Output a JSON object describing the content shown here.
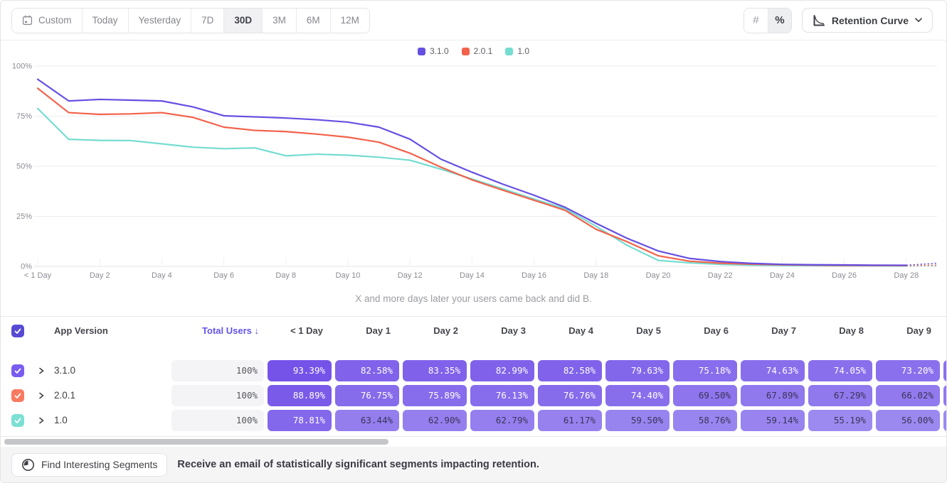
{
  "toolbar": {
    "date_ranges": [
      {
        "label": "Custom",
        "icon": "calendar-icon",
        "active": false
      },
      {
        "label": "Today",
        "active": false
      },
      {
        "label": "Yesterday",
        "active": false
      },
      {
        "label": "7D",
        "active": false
      },
      {
        "label": "30D",
        "active": true
      },
      {
        "label": "3M",
        "active": false
      },
      {
        "label": "6M",
        "active": false
      },
      {
        "label": "12M",
        "active": false
      }
    ],
    "value_format": {
      "options": [
        "#",
        "%"
      ],
      "selected": "%"
    },
    "chart_type_dropdown": {
      "label": "Retention Curve",
      "icon": "retention-curve-icon"
    }
  },
  "chart_data": {
    "type": "line",
    "subtitle": "X and more days later your users came back and did B.",
    "ylim": [
      0,
      100
    ],
    "y_tick_labels": [
      "0%",
      "25%",
      "50%",
      "75%",
      "100%"
    ],
    "x_tick_labels": [
      "< 1 Day",
      "Day 2",
      "Day 4",
      "Day 6",
      "Day 8",
      "Day 10",
      "Day 12",
      "Day 14",
      "Day 16",
      "Day 18",
      "Day 20",
      "Day 22",
      "Day 24",
      "Day 26",
      "Day 28"
    ],
    "x_unit": "day",
    "x_range": [
      0,
      28
    ],
    "grid": "horizontal",
    "legend_position": "top-center",
    "dashed_note": "dotted projection segment after Day 28",
    "series": [
      {
        "name": "3.1.0",
        "color": "#6550e2",
        "dashed_end": 1.6,
        "values": [
          93.39,
          82.58,
          83.35,
          82.99,
          82.58,
          79.63,
          75.18,
          74.63,
          74.05,
          73.2,
          72.0,
          69.5,
          63.5,
          53.5,
          47.0,
          41.0,
          35.5,
          29.5,
          21.5,
          14.0,
          7.7,
          4.0,
          2.4,
          1.5,
          1.0,
          0.8,
          0.7,
          0.6,
          0.55
        ]
      },
      {
        "name": "2.0.1",
        "color": "#f3624b",
        "dashed_end": 0.6,
        "values": [
          88.89,
          76.75,
          75.89,
          76.13,
          76.76,
          74.4,
          69.5,
          67.89,
          67.29,
          66.02,
          64.5,
          62.0,
          56.5,
          49.5,
          43.2,
          38.0,
          33.0,
          28.0,
          18.5,
          12.3,
          5.3,
          2.6,
          1.6,
          1.1,
          0.8,
          0.6,
          0.5,
          0.45,
          0.4
        ]
      },
      {
        "name": "1.0",
        "color": "#74dcd1",
        "dashed_end": 0.25,
        "values": [
          78.81,
          63.44,
          62.9,
          62.79,
          61.17,
          59.5,
          58.76,
          59.14,
          55.19,
          56.0,
          55.5,
          54.5,
          53.0,
          48.5,
          43.6,
          38.7,
          33.6,
          28.8,
          20.0,
          10.5,
          3.0,
          1.75,
          1.0,
          0.6,
          0.45,
          0.35,
          0.3,
          0.25,
          0.2
        ]
      }
    ]
  },
  "table": {
    "select_all_checked": true,
    "columns": {
      "version": "App Version",
      "total": "Total Users",
      "sort_indicator": "↓"
    },
    "day_columns": [
      "< 1 Day",
      "Day 1",
      "Day 2",
      "Day 3",
      "Day 4",
      "Day 5",
      "Day 6",
      "Day 7",
      "Day 8",
      "Day 9"
    ],
    "rows": [
      {
        "version": "3.1.0",
        "checked": true,
        "checkbox_color": "#7a5cf0",
        "total": "100%",
        "values": [
          93.39,
          82.58,
          83.35,
          82.99,
          82.58,
          79.63,
          75.18,
          74.63,
          74.05,
          73.2
        ]
      },
      {
        "version": "2.0.1",
        "checked": true,
        "checkbox_color": "#f87a60",
        "total": "100%",
        "values": [
          88.89,
          76.75,
          75.89,
          76.13,
          76.76,
          74.4,
          69.5,
          67.89,
          67.29,
          66.02
        ]
      },
      {
        "version": "1.0",
        "checked": true,
        "checkbox_color": "#7ce0d3",
        "total": "100%",
        "values": [
          78.81,
          63.44,
          62.9,
          62.79,
          61.17,
          59.5,
          58.76,
          59.14,
          55.19,
          56.0
        ]
      }
    ]
  },
  "footer": {
    "button_label": "Find Interesting Segments",
    "message": "Receive an email of statistically significant segments impacting retention."
  },
  "colors": {
    "accent_purple": "#6550e2",
    "header_checkbox": "#584ad2",
    "cell_text_dark": "#3a3458",
    "cell_low": "#9d8af0",
    "cell_high": "#7553e8",
    "total_cell_bg": "#f4f4f6",
    "gridline": "#ecedef",
    "axis_label": "#8a8b93"
  }
}
